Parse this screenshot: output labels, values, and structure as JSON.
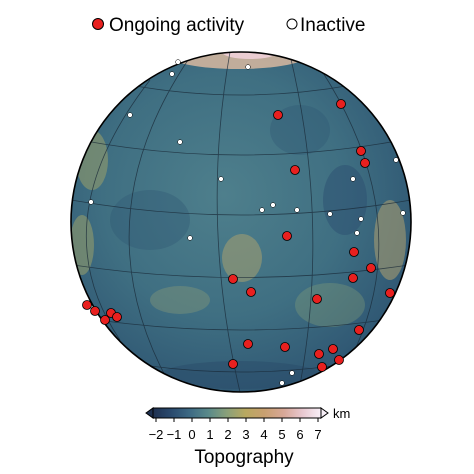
{
  "legend": {
    "active_label": "Ongoing activity",
    "inactive_label": "Inactive",
    "active_color": "#e8201f",
    "inactive_color": "#ffffff"
  },
  "colorbar": {
    "title": "Topography",
    "unit": "km",
    "ticks": [
      "−2",
      "−1",
      "0",
      "1",
      "2",
      "3",
      "4",
      "5",
      "6",
      "7"
    ],
    "range": [
      -2,
      7
    ],
    "colors": [
      "#1e3050",
      "#2a4a6e",
      "#3d6a84",
      "#5a8a8a",
      "#8aa07a",
      "#b8a860",
      "#c8a070",
      "#d8a898",
      "#e8c8d0",
      "#f8f0f8"
    ]
  },
  "map": {
    "projection": "orthographic",
    "graticule": true,
    "ocean_color": "#3a6a80"
  }
}
